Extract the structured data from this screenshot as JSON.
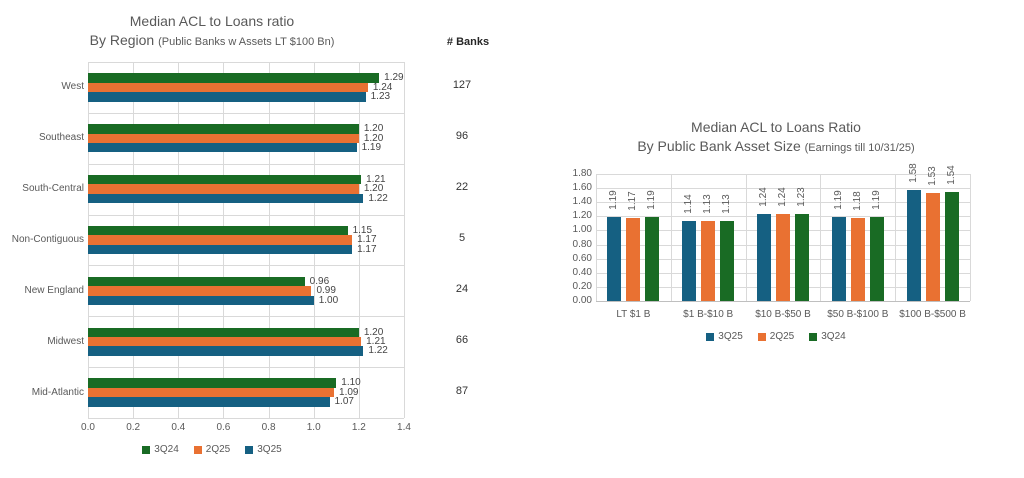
{
  "colors": {
    "blue": "#156082",
    "orange": "#E97132",
    "green": "#196B24",
    "gridline": "#D9D9D9",
    "axis_text": "#595959",
    "title_text": "#595959"
  },
  "left_chart": {
    "title_line1": "Median ACL to Loans ratio",
    "title_line2": "By Region",
    "title_note": "(Public Banks w Assets LT $100 Bn)",
    "banks_header": "# Banks"
  },
  "right_chart": {
    "title_line1": "Median ACL to Loans Ratio",
    "title_line2": "By Public Bank Asset Size",
    "title_note": "(Earnings till 10/31/25)"
  },
  "chart_data": [
    {
      "type": "bar",
      "orientation": "horizontal",
      "title": "Median ACL to Loans ratio By Region (Public Banks w Assets LT $100 Bn)",
      "categories": [
        "West",
        "Southeast",
        "South-Central",
        "Non-Contiguous",
        "New England",
        "Midwest",
        "Mid-Atlantic"
      ],
      "series": [
        {
          "name": "3Q24",
          "color": "green",
          "values": [
            1.29,
            1.2,
            1.21,
            1.15,
            0.96,
            1.2,
            1.1
          ]
        },
        {
          "name": "2Q25",
          "color": "orange",
          "values": [
            1.24,
            1.2,
            1.2,
            1.17,
            0.99,
            1.21,
            1.09
          ]
        },
        {
          "name": "3Q25",
          "color": "blue",
          "values": [
            1.23,
            1.19,
            1.22,
            1.17,
            1.0,
            1.22,
            1.07
          ]
        }
      ],
      "banks_header": "# Banks",
      "banks": [
        127,
        96,
        22,
        5,
        24,
        66,
        87
      ],
      "xlim": [
        0,
        1.4
      ],
      "xticks": [
        "0.0",
        "0.2",
        "0.4",
        "0.6",
        "0.8",
        "1.0",
        "1.2",
        "1.4"
      ],
      "grid": true,
      "value_labels": true,
      "legend_position": "bottom",
      "legend": [
        "3Q24",
        "2Q25",
        "3Q25"
      ]
    },
    {
      "type": "bar",
      "orientation": "vertical",
      "title": "Median ACL to Loans Ratio By Public Bank Asset Size (Earnings till 10/31/25)",
      "categories": [
        "LT $1 B",
        "$1 B-$10 B",
        "$10 B-$50 B",
        "$50 B-$100 B",
        "$100 B-$500 B"
      ],
      "series": [
        {
          "name": "3Q25",
          "color": "blue",
          "values": [
            1.19,
            1.14,
            1.24,
            1.19,
            1.58
          ]
        },
        {
          "name": "2Q25",
          "color": "orange",
          "values": [
            1.17,
            1.13,
            1.24,
            1.18,
            1.53
          ]
        },
        {
          "name": "3Q24",
          "color": "green",
          "values": [
            1.19,
            1.13,
            1.23,
            1.19,
            1.54
          ]
        }
      ],
      "ylim": [
        0,
        1.8
      ],
      "yticks": [
        "1.80",
        "1.60",
        "1.40",
        "1.20",
        "1.00",
        "0.80",
        "0.60",
        "0.40",
        "0.20",
        "0.00"
      ],
      "grid": true,
      "value_labels": true,
      "value_label_rotation": -90,
      "legend_position": "bottom",
      "legend": [
        "3Q25",
        "2Q25",
        "3Q24"
      ]
    }
  ]
}
